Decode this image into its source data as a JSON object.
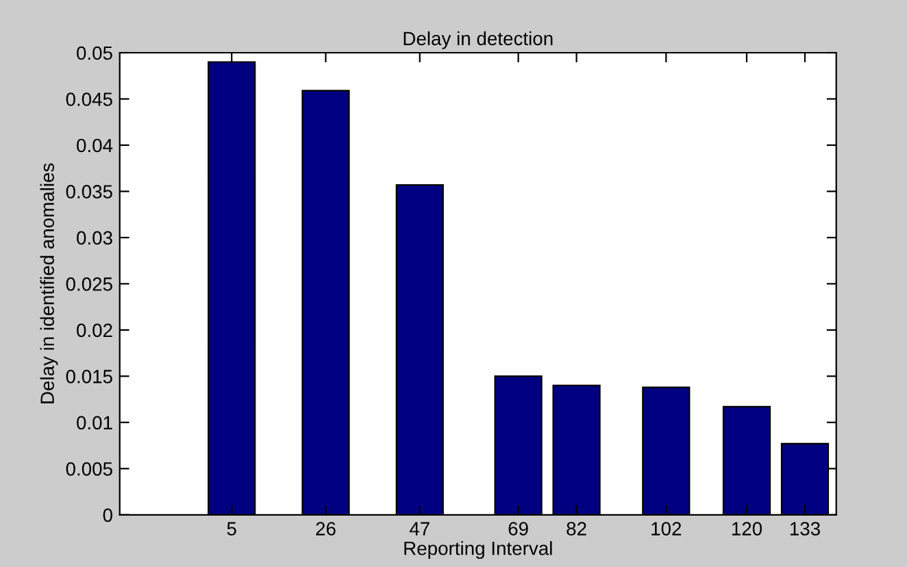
{
  "chart_data": {
    "type": "bar",
    "title": "Delay in detection",
    "xlabel": "Reporting Interval",
    "ylabel": "Delay in identified anomalies",
    "x": [
      5,
      26,
      47,
      69,
      82,
      102,
      120,
      133
    ],
    "values": [
      0.049,
      0.0459,
      0.0357,
      0.015,
      0.014,
      0.0138,
      0.0117,
      0.0077
    ],
    "color": "#000080",
    "xlim": [
      -20,
      140
    ],
    "xticks": [
      5,
      26,
      47,
      69,
      82,
      102,
      120,
      133
    ],
    "ylim": [
      0,
      0.05
    ],
    "yticks": [
      0,
      0.005,
      0.01,
      0.015,
      0.02,
      0.025,
      0.03,
      0.035,
      0.04,
      0.045,
      0.05
    ],
    "grid": false,
    "legend": false
  }
}
